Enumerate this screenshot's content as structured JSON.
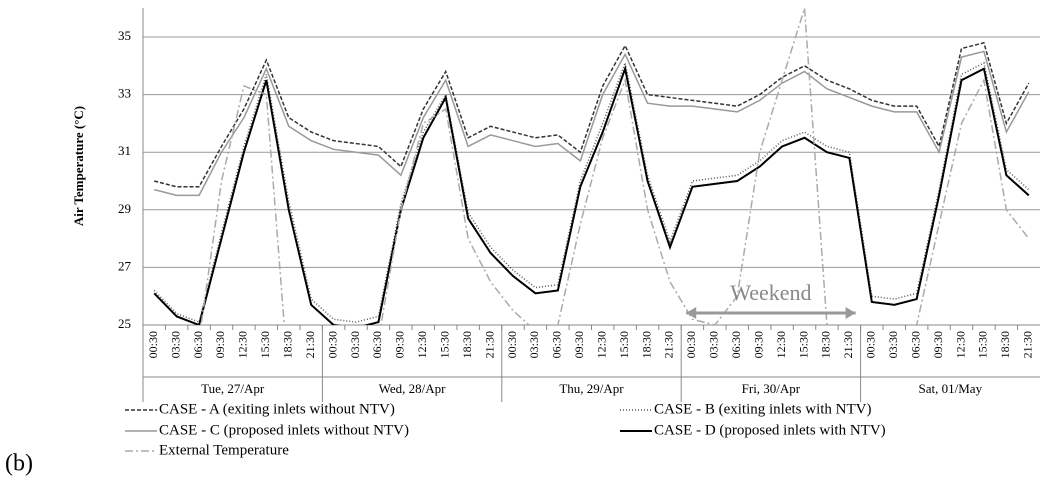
{
  "chart_data": {
    "type": "line",
    "ylabel": "Air Temperature (°C)",
    "panel_label": "(b)",
    "categories": [
      "00:30",
      "03:30",
      "06:30",
      "09:30",
      "12:30",
      "15:30",
      "18:30",
      "21:30",
      "00:30",
      "03:30",
      "06:30",
      "09:30",
      "12:30",
      "15:30",
      "18:30",
      "21:30",
      "00:30",
      "03:30",
      "06:30",
      "09:30",
      "12:30",
      "15:30",
      "18:30",
      "21:30",
      "00:30",
      "03:30",
      "06:30",
      "09:30",
      "12:30",
      "15:30",
      "18:30",
      "21:30",
      "00:30",
      "03:30",
      "06:30",
      "09:30",
      "12:30",
      "15:30",
      "18:30",
      "21:30"
    ],
    "groups": [
      "Tue, 27/Apr",
      "Wed, 28/Apr",
      "Thu, 29/Apr",
      "Fri, 30/Apr",
      "Sat, 01/May"
    ],
    "ylim": [
      25,
      36
    ],
    "yticks": [
      25,
      27,
      29,
      31,
      33,
      35
    ],
    "grid": true,
    "annotation": "Weekend",
    "series": [
      {
        "name": "CASE - A (exiting inlets without NTV)",
        "color": "#333333",
        "dash": "4,2",
        "values": [
          30.0,
          29.8,
          29.8,
          31.2,
          32.5,
          34.2,
          32.2,
          31.7,
          31.4,
          31.3,
          31.2,
          30.5,
          32.5,
          33.8,
          31.5,
          31.9,
          31.7,
          31.5,
          31.6,
          31.0,
          33.3,
          34.7,
          33.0,
          32.9,
          32.8,
          32.7,
          32.6,
          33.0,
          33.6,
          34.0,
          33.5,
          33.2,
          32.8,
          32.6,
          32.6,
          31.2,
          34.6,
          34.8,
          32.0,
          33.4
        ]
      },
      {
        "name": "CASE - B (exiting inlets with NTV)",
        "color": "#555555",
        "dash": "1,2",
        "values": [
          26.2,
          25.4,
          25.1,
          28.2,
          31.2,
          33.7,
          29.3,
          25.9,
          25.2,
          25.1,
          25.3,
          29.2,
          31.7,
          33.0,
          28.9,
          27.7,
          26.9,
          26.3,
          26.4,
          30.0,
          32.0,
          34.1,
          30.2,
          27.9,
          30.0,
          30.1,
          30.2,
          30.7,
          31.4,
          31.7,
          31.2,
          31.0,
          26.0,
          25.9,
          26.1,
          29.7,
          33.7,
          34.1,
          30.4,
          29.7
        ]
      },
      {
        "name": "CASE - C (proposed inlets without NTV)",
        "color": "#999999",
        "dash": "none",
        "values": [
          29.7,
          29.5,
          29.5,
          31.0,
          32.2,
          33.9,
          31.9,
          31.4,
          31.1,
          31.0,
          30.9,
          30.2,
          32.2,
          33.5,
          31.2,
          31.6,
          31.4,
          31.2,
          31.3,
          30.7,
          33.0,
          34.4,
          32.7,
          32.6,
          32.6,
          32.5,
          32.4,
          32.8,
          33.4,
          33.8,
          33.2,
          32.9,
          32.6,
          32.4,
          32.4,
          31.0,
          34.3,
          34.5,
          31.7,
          33.1
        ]
      },
      {
        "name": "CASE - D (proposed inlets with NTV)",
        "color": "#000000",
        "dash": "none",
        "values": [
          26.1,
          25.3,
          25.0,
          28.0,
          31.0,
          33.5,
          29.0,
          25.7,
          25.0,
          24.9,
          25.1,
          29.0,
          31.5,
          32.9,
          28.7,
          27.5,
          26.7,
          26.1,
          26.2,
          29.8,
          31.7,
          33.9,
          30.0,
          27.7,
          29.8,
          29.9,
          30.0,
          30.5,
          31.2,
          31.5,
          31.0,
          30.8,
          25.8,
          25.7,
          25.9,
          29.5,
          33.5,
          33.9,
          30.2,
          29.5
        ]
      },
      {
        "name": "External Temperature",
        "color": "#aaaaaa",
        "dash": "8,3,2,3",
        "values": [
          25.0,
          24.0,
          24.5,
          30.0,
          33.3,
          33.0,
          23.0,
          22.0,
          24.0,
          24.0,
          24.5,
          29.0,
          32.0,
          32.5,
          28.0,
          26.5,
          25.5,
          24.8,
          25.0,
          28.5,
          31.5,
          33.5,
          29.0,
          26.5,
          25.2,
          25.0,
          26.0,
          31.0,
          33.5,
          36.0,
          25.0,
          24.0,
          24.0,
          24.0,
          25.0,
          28.5,
          32.0,
          33.5,
          29.0,
          28.0
        ]
      }
    ]
  }
}
